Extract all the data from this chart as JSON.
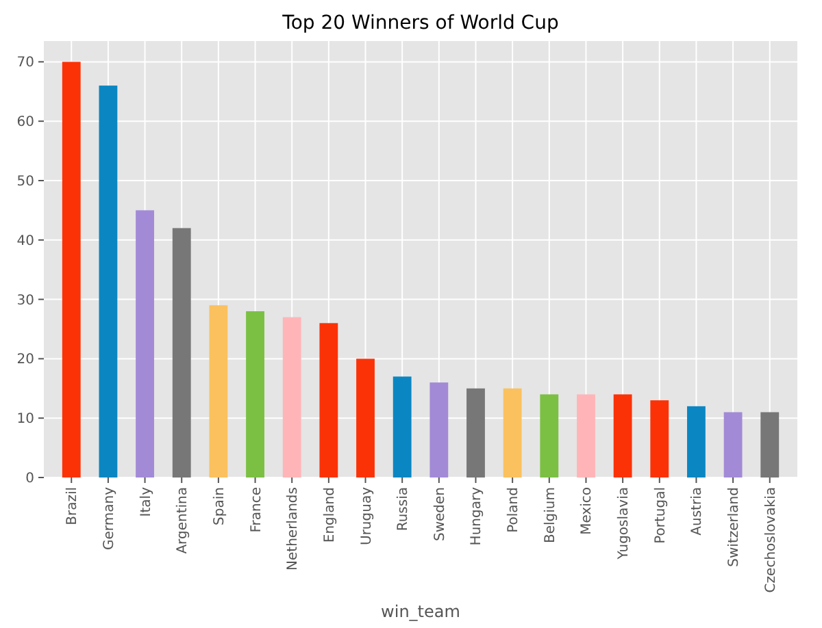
{
  "chart_data": {
    "type": "bar",
    "title": "Top 20 Winners of World Cup",
    "xlabel": "win_team",
    "categories": [
      "Brazil",
      "Germany",
      "Italy",
      "Argentina",
      "Spain",
      "France",
      "Netherlands",
      "England",
      "Uruguay",
      "Russia",
      "Sweden",
      "Hungary",
      "Poland",
      "Belgium",
      "Mexico",
      "Yugoslavia",
      "Portugal",
      "Austria",
      "Switzerland",
      "Czechoslovakia"
    ],
    "values": [
      70,
      66,
      45,
      42,
      29,
      28,
      27,
      26,
      20,
      17,
      16,
      15,
      15,
      14,
      14,
      14,
      13,
      12,
      11,
      11
    ],
    "colors": [
      "#fc3207",
      "#0a87c2",
      "#a38ad6",
      "#777777",
      "#fbc15e",
      "#7bc043",
      "#ffb5b8",
      "#fc3207",
      "#fc3207",
      "#0a87c2",
      "#a38ad6",
      "#777777",
      "#fbc15e",
      "#7bc043",
      "#ffb5b8",
      "#fc3207",
      "#fc3207",
      "#0a87c2",
      "#a38ad6",
      "#777777"
    ],
    "ylim": [
      0,
      73.5
    ],
    "yticks": [
      0,
      10,
      20,
      30,
      40,
      50,
      60,
      70
    ],
    "grid": true
  }
}
